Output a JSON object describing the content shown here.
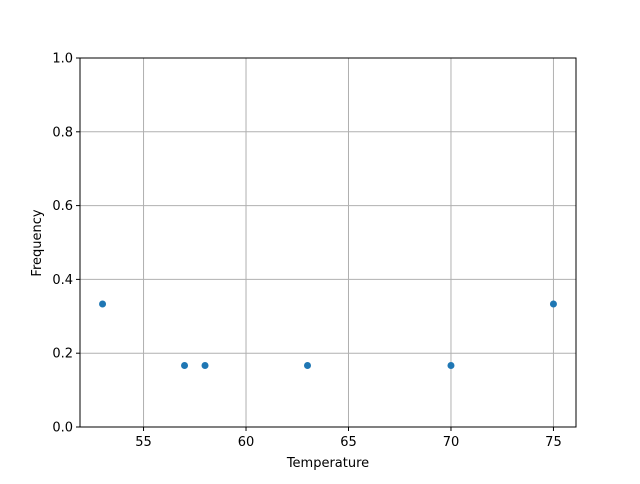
{
  "chart_data": {
    "type": "scatter",
    "title": "",
    "xlabel": "Temperature",
    "ylabel": "Frequency",
    "x": [
      53,
      57,
      58,
      63,
      70,
      75
    ],
    "y": [
      0.3333,
      0.1667,
      0.1667,
      0.1667,
      0.1667,
      0.3333
    ],
    "xlim": [
      51.9,
      76.1
    ],
    "ylim": [
      0.0,
      1.0
    ],
    "xticks": [
      55,
      60,
      65,
      70,
      75
    ],
    "xtick_labels": [
      "55",
      "60",
      "65",
      "70",
      "75"
    ],
    "yticks": [
      0.0,
      0.2,
      0.4,
      0.6,
      0.8,
      1.0
    ],
    "ytick_labels": [
      "0.0",
      "0.2",
      "0.4",
      "0.6",
      "0.8",
      "1.0"
    ],
    "grid": true,
    "marker_color": "#1f77b4",
    "grid_color": "#b0b0b0"
  }
}
